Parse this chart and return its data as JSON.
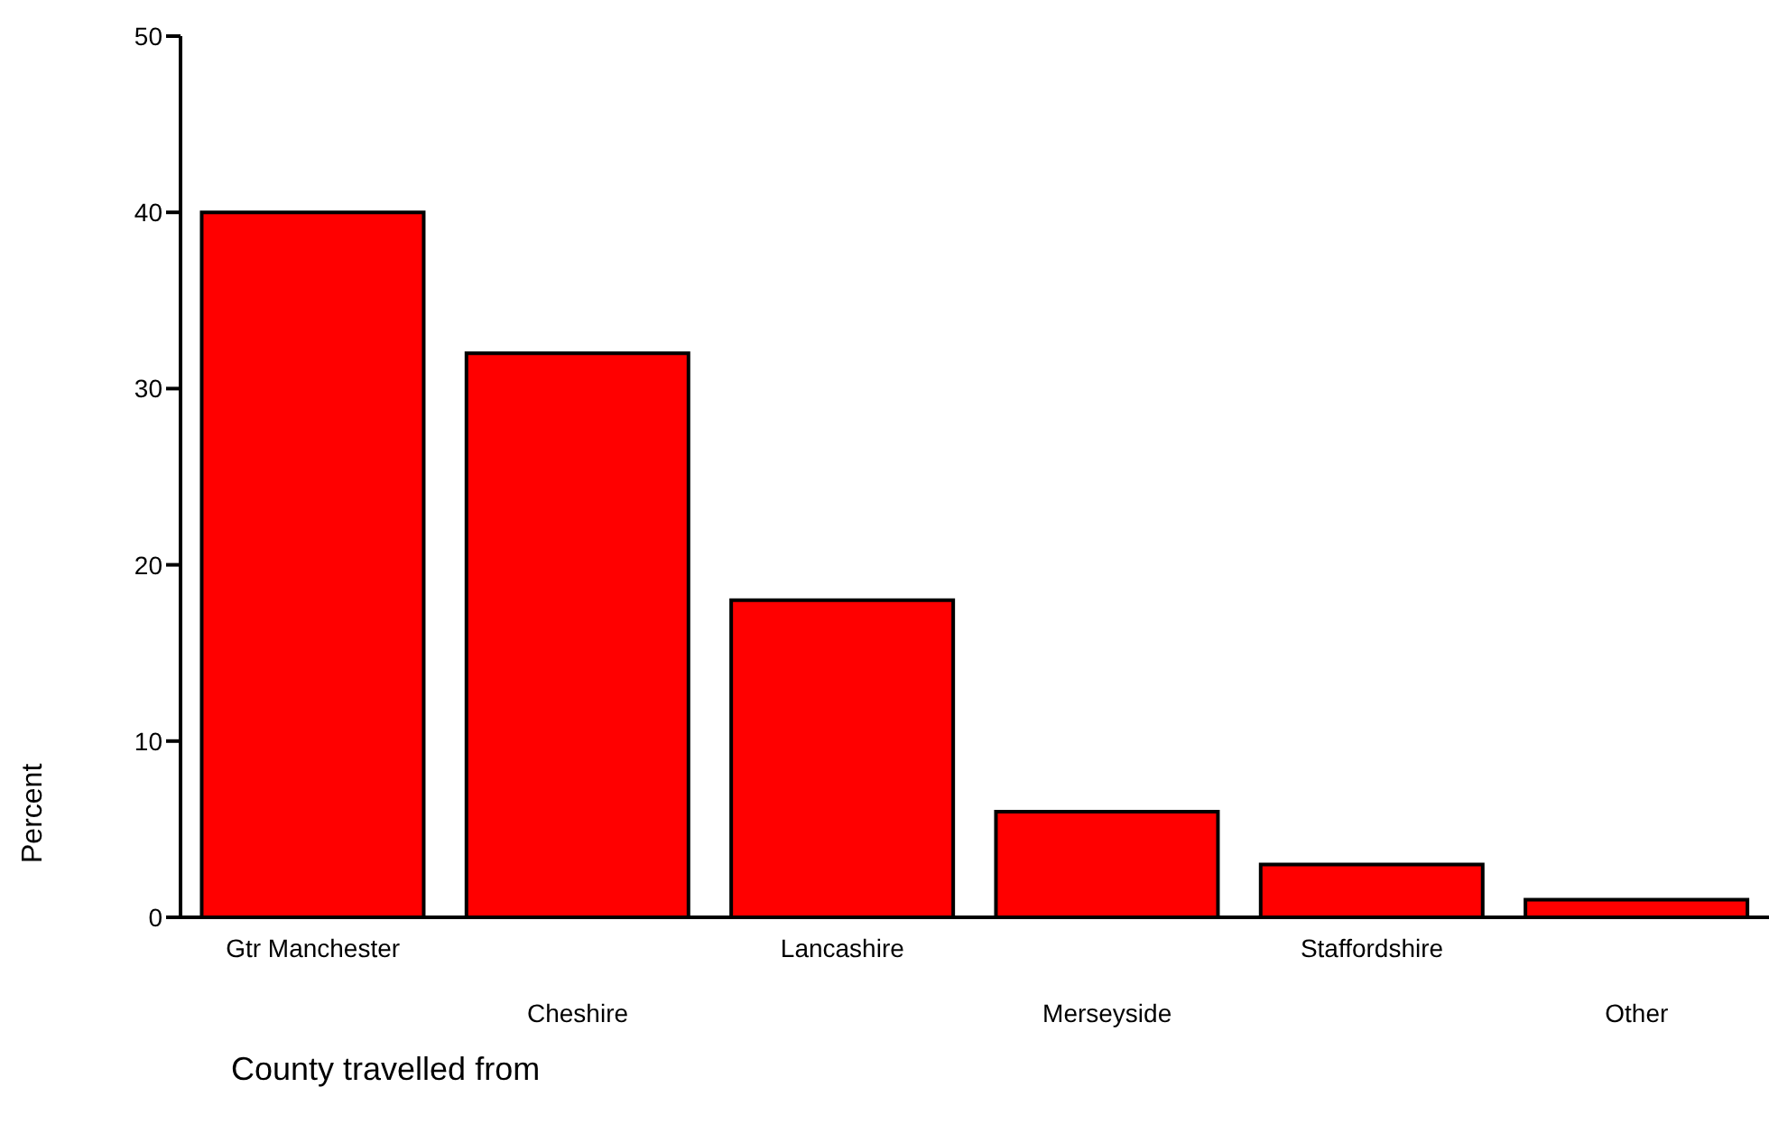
{
  "chart_data": {
    "type": "bar",
    "xlabel": "County travelled from",
    "ylabel": "Percent",
    "categories": [
      "Gtr Manchester",
      "Cheshire",
      "Lancashire",
      "Merseyside",
      "Staffordshire",
      "Other"
    ],
    "values": [
      40,
      32,
      18,
      6,
      3,
      1
    ],
    "color": "#ff0000",
    "ylim": [
      0,
      50
    ],
    "yticks": [
      0,
      10,
      20,
      30,
      40,
      50
    ],
    "grid": false,
    "legend": false
  }
}
